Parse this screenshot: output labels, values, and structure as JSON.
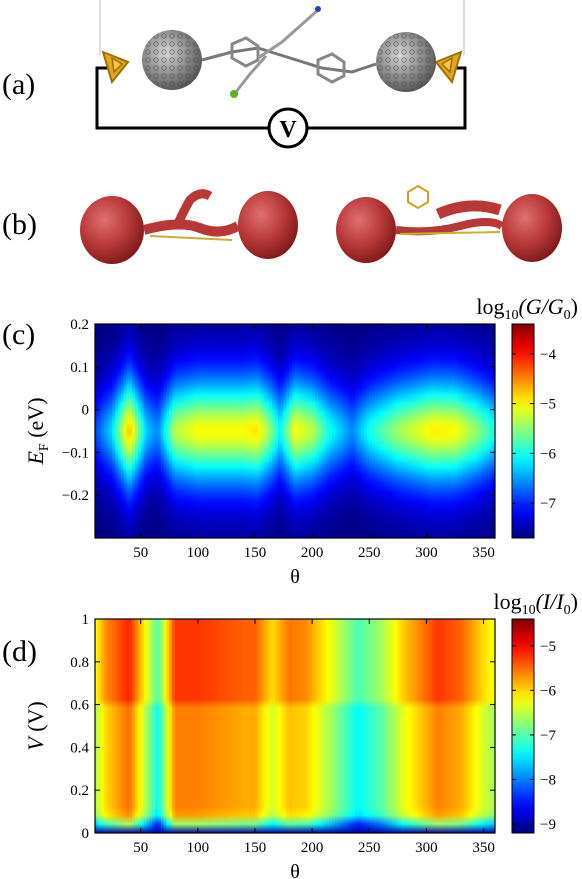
{
  "panels": {
    "a": {
      "label": "(a)",
      "voltmeter_symbol": "V"
    },
    "b": {
      "label": "(b)"
    },
    "c": {
      "label": "(c)"
    },
    "d": {
      "label": "(d)"
    }
  },
  "chart_data": [
    {
      "id": "c",
      "type": "heatmap",
      "ylabel_main": "E",
      "ylabel_sub": "F",
      "ylabel_unit": " (eV)",
      "xlabel": "θ",
      "xlim": [
        10,
        360
      ],
      "ylim": [
        -0.3,
        0.2
      ],
      "xticks": [
        50,
        100,
        150,
        200,
        250,
        300,
        350
      ],
      "yticks": [
        -0.2,
        -0.1,
        0,
        0.1,
        0.2
      ],
      "ytick_labels": [
        "−0.2",
        "−0.1",
        "0",
        "0.1",
        "0.2"
      ],
      "colorbar_title": {
        "pre": "log",
        "sub": "10",
        "mid": "(G/G",
        "sub2": "0",
        "post": ")"
      },
      "colorbar_range": [
        -7.7,
        -3.4
      ],
      "colorbar_ticks": [
        -7,
        -6,
        -5,
        -4
      ],
      "colorbar_tick_labels": [
        "−7",
        "−6",
        "−5",
        "−4"
      ],
      "colormap": "jet",
      "conduction_peak_energy": -0.05,
      "peak_levels": [
        {
          "theta": 10,
          "value": -6.9
        },
        {
          "theta": 25,
          "value": -6.2
        },
        {
          "theta": 40,
          "value": -4.7
        },
        {
          "theta": 55,
          "value": -6.3
        },
        {
          "theta": 65,
          "value": -6.6
        },
        {
          "theta": 80,
          "value": -5.3
        },
        {
          "theta": 100,
          "value": -5.0
        },
        {
          "theta": 120,
          "value": -5.0
        },
        {
          "theta": 140,
          "value": -5.0
        },
        {
          "theta": 152,
          "value": -4.9
        },
        {
          "theta": 162,
          "value": -5.4
        },
        {
          "theta": 172,
          "value": -6.1
        },
        {
          "theta": 185,
          "value": -5.0
        },
        {
          "theta": 200,
          "value": -5.3
        },
        {
          "theta": 215,
          "value": -6.0
        },
        {
          "theta": 235,
          "value": -6.6
        },
        {
          "theta": 250,
          "value": -6.0
        },
        {
          "theta": 275,
          "value": -5.4
        },
        {
          "theta": 305,
          "value": -4.95
        },
        {
          "theta": 325,
          "value": -5.0
        },
        {
          "theta": 345,
          "value": -5.5
        },
        {
          "theta": 360,
          "value": -6.0
        }
      ]
    },
    {
      "id": "d",
      "type": "heatmap",
      "ylabel_main": "V",
      "ylabel_unit": " (V)",
      "xlabel": "θ",
      "xlim": [
        10,
        360
      ],
      "ylim": [
        0,
        1
      ],
      "xticks": [
        50,
        100,
        150,
        200,
        250,
        300,
        350
      ],
      "yticks": [
        0,
        0.2,
        0.4,
        0.6,
        0.8,
        1
      ],
      "ytick_labels": [
        "0",
        "0.2",
        "0.4",
        "0.6",
        "0.8",
        "1"
      ],
      "colorbar_title": {
        "pre": "log",
        "sub": "10",
        "mid": "(I/I",
        "sub2": "0",
        "post": ")"
      },
      "colorbar_range": [
        -9.2,
        -4.4
      ],
      "colorbar_ticks": [
        -9,
        -8,
        -7,
        -6,
        -5
      ],
      "colorbar_tick_labels": [
        "−9",
        "−8",
        "−7",
        "−6",
        "−5"
      ],
      "colormap": "jet",
      "column_levels": [
        {
          "theta": 10,
          "value": -6.6
        },
        {
          "theta": 20,
          "value": -6.0
        },
        {
          "theta": 40,
          "value": -5.5
        },
        {
          "theta": 55,
          "value": -6.6
        },
        {
          "theta": 65,
          "value": -7.4
        },
        {
          "theta": 80,
          "value": -5.6
        },
        {
          "theta": 100,
          "value": -5.6
        },
        {
          "theta": 120,
          "value": -5.7
        },
        {
          "theta": 140,
          "value": -5.8
        },
        {
          "theta": 150,
          "value": -5.8
        },
        {
          "theta": 165,
          "value": -6.4
        },
        {
          "theta": 180,
          "value": -5.9
        },
        {
          "theta": 195,
          "value": -6.0
        },
        {
          "theta": 215,
          "value": -6.6
        },
        {
          "theta": 240,
          "value": -7.4
        },
        {
          "theta": 260,
          "value": -7.0
        },
        {
          "theta": 280,
          "value": -6.3
        },
        {
          "theta": 310,
          "value": -5.6
        },
        {
          "theta": 330,
          "value": -5.8
        },
        {
          "theta": 350,
          "value": -6.4
        },
        {
          "theta": 360,
          "value": -6.6
        }
      ]
    }
  ]
}
